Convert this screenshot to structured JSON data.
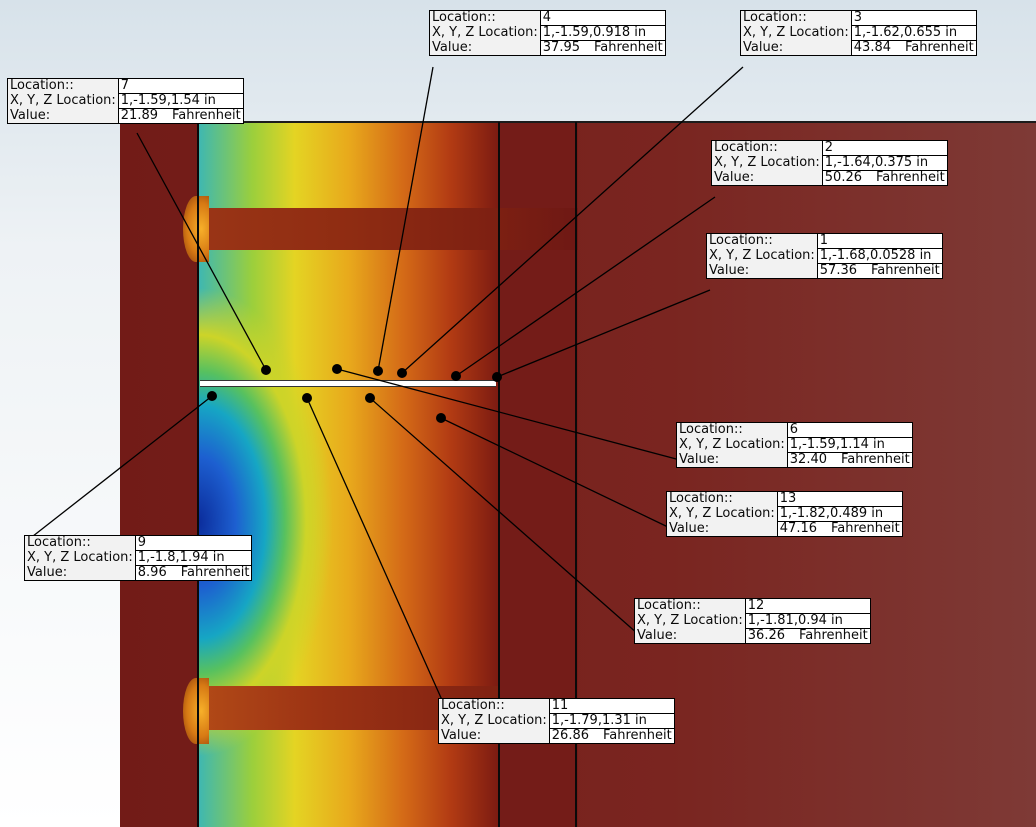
{
  "labels": {
    "location": "Location::",
    "xyz": "X, Y, Z Location:",
    "value": "Value:"
  },
  "probes": [
    {
      "id": "7",
      "xyz": "1,-1.59,1.54 in",
      "value": "21.89",
      "unit": "Fahrenheit"
    },
    {
      "id": "4",
      "xyz": "1,-1.59,0.918 in",
      "value": "37.95",
      "unit": "Fahrenheit"
    },
    {
      "id": "3",
      "xyz": "1,-1.62,0.655 in",
      "value": "43.84",
      "unit": "Fahrenheit"
    },
    {
      "id": "2",
      "xyz": "1,-1.64,0.375 in",
      "value": "50.26",
      "unit": "Fahrenheit"
    },
    {
      "id": "1",
      "xyz": "1,-1.68,0.0528 in",
      "value": "57.36",
      "unit": "Fahrenheit"
    },
    {
      "id": "6",
      "xyz": "1,-1.59,1.14 in",
      "value": "32.40",
      "unit": "Fahrenheit"
    },
    {
      "id": "13",
      "xyz": "1,-1.82,0.489 in",
      "value": "47.16",
      "unit": "Fahrenheit"
    },
    {
      "id": "9",
      "xyz": "1,-1.8,1.94 in",
      "value": "8.96",
      "unit": "Fahrenheit"
    },
    {
      "id": "12",
      "xyz": "1,-1.81,0.94 in",
      "value": "36.26",
      "unit": "Fahrenheit"
    },
    {
      "id": "11",
      "xyz": "1,-1.79,1.31 in",
      "value": "26.86",
      "unit": "Fahrenheit"
    }
  ],
  "colors": {
    "cold": "#0b2c9b",
    "mid": "#e4d423",
    "hot": "#721b17"
  }
}
